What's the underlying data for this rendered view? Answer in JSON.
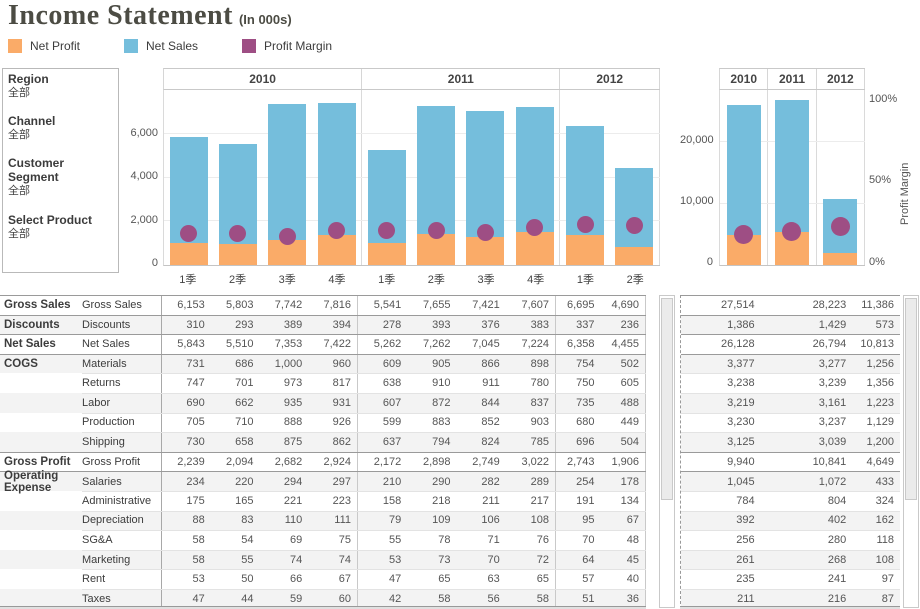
{
  "title": {
    "main": "Income Statement",
    "suffix": "(In 000s)"
  },
  "legend": [
    {
      "label": "Net Profit",
      "color": "#FAAB68"
    },
    {
      "label": "Net Sales",
      "color": "#75BEDC"
    },
    {
      "label": "Profit Margin",
      "color": "#9E4E84"
    }
  ],
  "filters": [
    {
      "label": "Region",
      "value": "全部"
    },
    {
      "label": "Channel",
      "value": "全部"
    },
    {
      "label": "Customer Segment",
      "value": "全部"
    },
    {
      "label": "Select Product",
      "value": "全部"
    }
  ],
  "chart_data": [
    {
      "type": "bar",
      "subtype": "stacked-bars-with-margin-dots",
      "groups": [
        {
          "label": "2010",
          "cols": [
            "1季",
            "2季",
            "3季",
            "4季"
          ]
        },
        {
          "label": "2011",
          "cols": [
            "1季",
            "2季",
            "3季",
            "4季"
          ]
        },
        {
          "label": "2012",
          "cols": [
            "1季",
            "2季"
          ]
        }
      ],
      "series": [
        {
          "name": "Net Sales",
          "color": "#75BEDC",
          "values": [
            5843,
            5510,
            7353,
            7422,
            5262,
            7262,
            7045,
            7224,
            6358,
            4455
          ]
        },
        {
          "name": "Net Profit",
          "color": "#FAAB68",
          "values": [
            1000,
            950,
            1160,
            1390,
            1010,
            1410,
            1300,
            1530,
            1380,
            830
          ]
        }
      ],
      "margins_pct": [
        18,
        18,
        16.5,
        19.5,
        20,
        19.5,
        18.5,
        21.5,
        23,
        22.5
      ],
      "yticks": [
        "0",
        "2,000",
        "4,000",
        "6,000"
      ],
      "ylim": [
        0,
        8000
      ],
      "grid": [
        2000,
        4000,
        6000
      ]
    },
    {
      "type": "bar",
      "subtype": "stacked-bars-with-margin-dots",
      "groups": [
        {
          "label": "2010",
          "cols": [
            ""
          ]
        },
        {
          "label": "2011",
          "cols": [
            ""
          ]
        },
        {
          "label": "2012",
          "cols": [
            ""
          ]
        }
      ],
      "series": [
        {
          "name": "Net Sales",
          "color": "#75BEDC",
          "values": [
            26128,
            26794,
            10813
          ]
        },
        {
          "name": "Net Profit",
          "color": "#FAAB68",
          "values": [
            4900,
            5450,
            1900
          ]
        }
      ],
      "margins_pct": [
        19,
        20.5,
        23.5
      ],
      "yticks": [
        "0",
        "10,000",
        "20,000"
      ],
      "ylim": [
        0,
        28500
      ],
      "grid": [
        10000,
        20000
      ],
      "right_axis": {
        "title": "Profit Margin",
        "ticks": [
          "0%",
          "50%",
          "100%"
        ]
      }
    }
  ],
  "table": {
    "rows": [
      {
        "cat": "Gross Sales",
        "label": "Gross Sales",
        "q": [
          "6,153",
          "5,803",
          "7,742",
          "7,816",
          "5,541",
          "7,655",
          "7,421",
          "7,607",
          "6,695",
          "4,690"
        ],
        "y": [
          "27,514",
          "28,223",
          "11,386"
        ]
      },
      {
        "cat": "Discounts",
        "label": "Discounts",
        "q": [
          "310",
          "293",
          "389",
          "394",
          "278",
          "393",
          "376",
          "383",
          "337",
          "236"
        ],
        "y": [
          "1,386",
          "1,429",
          "573"
        ]
      },
      {
        "cat": "Net Sales",
        "label": "Net Sales",
        "q": [
          "5,843",
          "5,510",
          "7,353",
          "7,422",
          "5,262",
          "7,262",
          "7,045",
          "7,224",
          "6,358",
          "4,455"
        ],
        "y": [
          "26,128",
          "26,794",
          "10,813"
        ]
      },
      {
        "cat": "COGS",
        "label": "Materials",
        "q": [
          "731",
          "686",
          "1,000",
          "960",
          "609",
          "905",
          "866",
          "898",
          "754",
          "502"
        ],
        "y": [
          "3,377",
          "3,277",
          "1,256"
        ]
      },
      {
        "cat": "",
        "label": "Returns",
        "q": [
          "747",
          "701",
          "973",
          "817",
          "638",
          "910",
          "911",
          "780",
          "750",
          "605"
        ],
        "y": [
          "3,238",
          "3,239",
          "1,356"
        ]
      },
      {
        "cat": "",
        "label": "Labor",
        "q": [
          "690",
          "662",
          "935",
          "931",
          "607",
          "872",
          "844",
          "837",
          "735",
          "488"
        ],
        "y": [
          "3,219",
          "3,161",
          "1,223"
        ]
      },
      {
        "cat": "",
        "label": "Production",
        "q": [
          "705",
          "710",
          "888",
          "926",
          "599",
          "883",
          "852",
          "903",
          "680",
          "449"
        ],
        "y": [
          "3,230",
          "3,237",
          "1,129"
        ]
      },
      {
        "cat": "",
        "label": "Shipping",
        "q": [
          "730",
          "658",
          "875",
          "862",
          "637",
          "794",
          "824",
          "785",
          "696",
          "504"
        ],
        "y": [
          "3,125",
          "3,039",
          "1,200"
        ]
      },
      {
        "cat": "Gross Profit",
        "label": "Gross Profit",
        "q": [
          "2,239",
          "2,094",
          "2,682",
          "2,924",
          "2,172",
          "2,898",
          "2,749",
          "3,022",
          "2,743",
          "1,906"
        ],
        "y": [
          "9,940",
          "10,841",
          "4,649"
        ]
      },
      {
        "cat": "Operating Expense",
        "label": "Salaries",
        "q": [
          "234",
          "220",
          "294",
          "297",
          "210",
          "290",
          "282",
          "289",
          "254",
          "178"
        ],
        "y": [
          "1,045",
          "1,072",
          "433"
        ]
      },
      {
        "cat": "",
        "label": "Administrative",
        "q": [
          "175",
          "165",
          "221",
          "223",
          "158",
          "218",
          "211",
          "217",
          "191",
          "134"
        ],
        "y": [
          "784",
          "804",
          "324"
        ]
      },
      {
        "cat": "",
        "label": "Depreciation",
        "q": [
          "88",
          "83",
          "110",
          "111",
          "79",
          "109",
          "106",
          "108",
          "95",
          "67"
        ],
        "y": [
          "392",
          "402",
          "162"
        ]
      },
      {
        "cat": "",
        "label": "SG&A",
        "q": [
          "58",
          "54",
          "69",
          "75",
          "55",
          "78",
          "71",
          "76",
          "70",
          "48"
        ],
        "y": [
          "256",
          "280",
          "118"
        ]
      },
      {
        "cat": "",
        "label": "Marketing",
        "q": [
          "58",
          "55",
          "74",
          "74",
          "53",
          "73",
          "70",
          "72",
          "64",
          "45"
        ],
        "y": [
          "261",
          "268",
          "108"
        ]
      },
      {
        "cat": "",
        "label": "Rent",
        "q": [
          "53",
          "50",
          "66",
          "67",
          "47",
          "65",
          "63",
          "65",
          "57",
          "40"
        ],
        "y": [
          "235",
          "241",
          "97"
        ]
      },
      {
        "cat": "",
        "label": "Taxes",
        "q": [
          "47",
          "44",
          "59",
          "60",
          "42",
          "58",
          "56",
          "58",
          "51",
          "36"
        ],
        "y": [
          "211",
          "216",
          "87"
        ]
      }
    ]
  }
}
